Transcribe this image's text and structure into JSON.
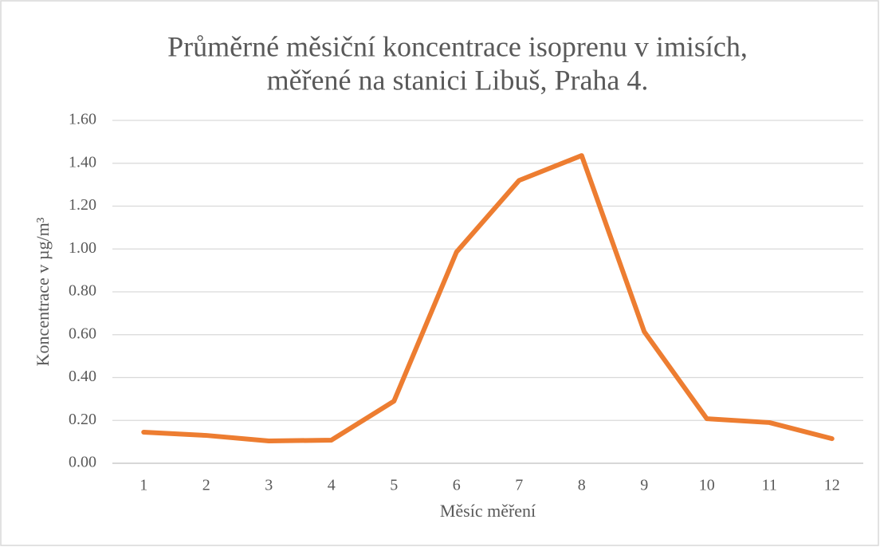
{
  "chart_data": {
    "type": "line",
    "title": [
      "Průměrné měsiční koncentrace isoprenu v imisích,",
      "měřené na stanici Libuš, Praha 4."
    ],
    "x_label": "Měsíc měření",
    "y_label": "Koncentrace v µg/m³",
    "categories": [
      "1",
      "2",
      "3",
      "4",
      "5",
      "6",
      "7",
      "8",
      "9",
      "10",
      "11",
      "12"
    ],
    "series": [
      {
        "color": "#ed7d31",
        "values": [
          0.145,
          0.13,
          0.104,
          0.108,
          0.29,
          0.986,
          1.32,
          1.436,
          0.614,
          0.208,
          0.19,
          0.115
        ]
      }
    ],
    "ylim": [
      0,
      1.6
    ],
    "yticks": [
      {
        "value": 0,
        "label": "0.00"
      },
      {
        "value": 0.2,
        "label": "0.20"
      },
      {
        "value": 0.4,
        "label": "0.40"
      },
      {
        "value": 0.6,
        "label": "0.60"
      },
      {
        "value": 0.8,
        "label": "0.80"
      },
      {
        "value": 1.0,
        "label": "1.00"
      },
      {
        "value": 1.2,
        "label": "1.20"
      },
      {
        "value": 1.4,
        "label": "1.40"
      },
      {
        "value": 1.6,
        "label": "1.60"
      }
    ],
    "grid": true
  }
}
